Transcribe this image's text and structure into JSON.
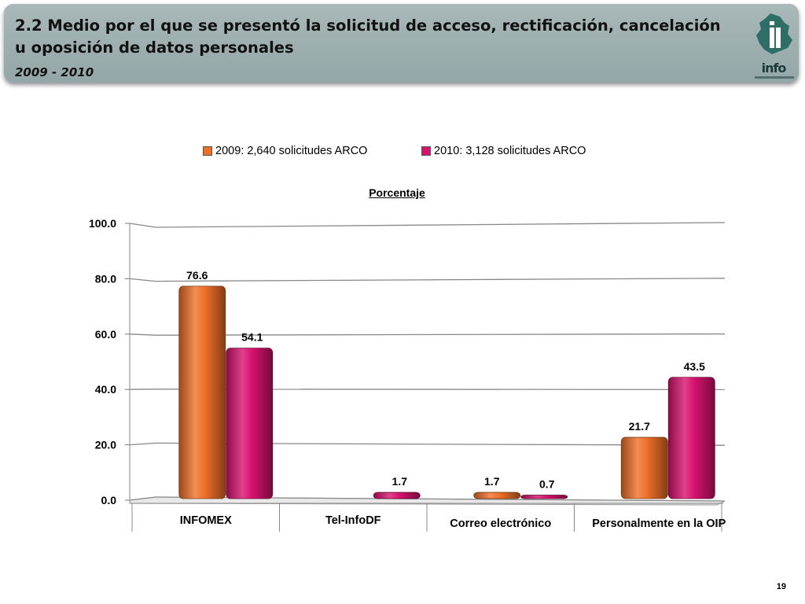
{
  "header": {
    "title": "2.2 Medio por el que se presentó la solicitud de acceso, rectificación, cancelación u oposición de datos personales",
    "subtitle": "2009 - 2010",
    "logo_text": "info"
  },
  "chart_data": {
    "type": "bar",
    "title": "Porcentaje",
    "categories": [
      "INFOMEX",
      "Tel-InfoDF",
      "Correo electrónico",
      "Personalmente en la OIP"
    ],
    "series": [
      {
        "name": "2009: 2,640 solicitudes ARCO",
        "values": [
          76.6,
          null,
          1.7,
          21.7
        ],
        "labels": [
          "76.6",
          "",
          "1.7",
          "21.7"
        ],
        "color": "#f07028"
      },
      {
        "name": "2010: 3,128 solicitudes ARCO",
        "values": [
          54.1,
          1.7,
          0.7,
          43.5
        ],
        "labels": [
          "54.1",
          "1.7",
          "0.7",
          "43.5"
        ],
        "color": "#d8126e"
      }
    ],
    "yticks": [
      "0.0",
      "20.0",
      "40.0",
      "60.0",
      "80.0",
      "100.0"
    ],
    "ylim": [
      0,
      100
    ],
    "grid": true,
    "legend": "top"
  },
  "footer": {
    "page_number": "19"
  }
}
